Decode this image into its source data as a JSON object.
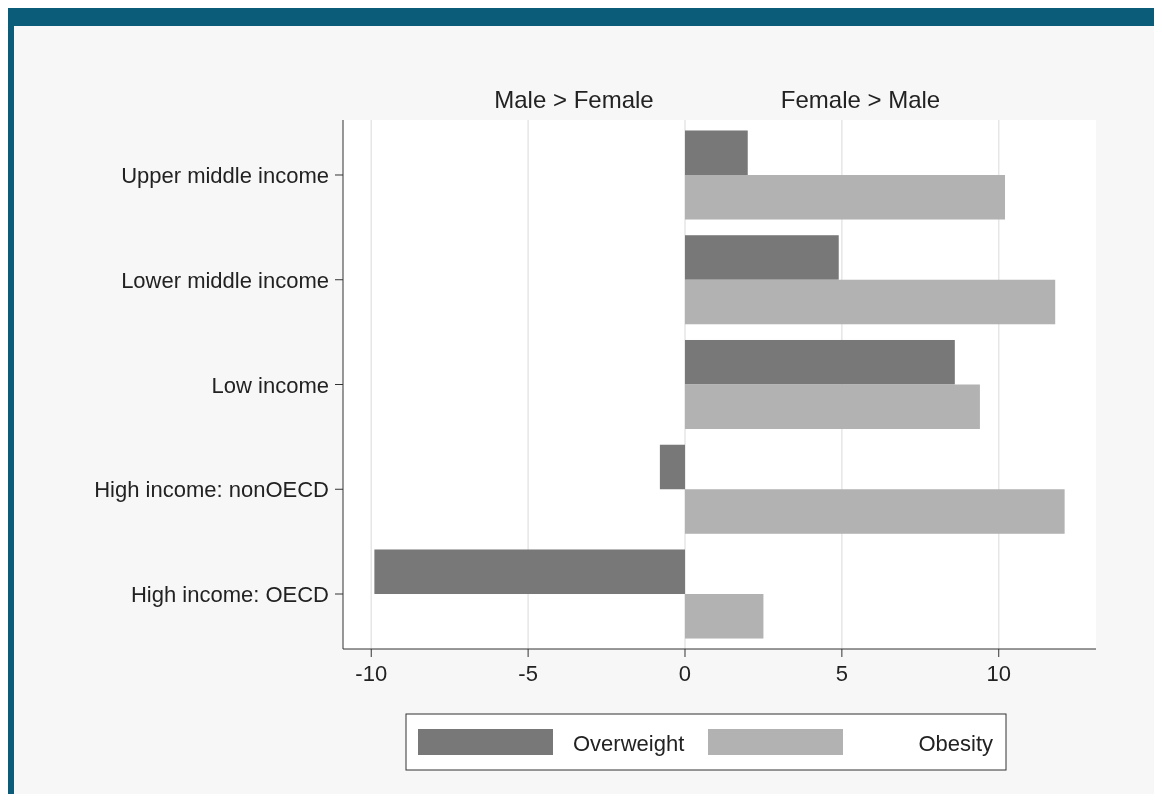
{
  "chart_data": {
    "type": "bar",
    "orientation": "horizontal",
    "categories": [
      "Upper middle income",
      "Lower middle income",
      "Low income",
      "High income: nonOECD",
      "High income: OECD"
    ],
    "series": [
      {
        "name": "Overweight",
        "color": "#787878",
        "values": [
          2.0,
          4.9,
          8.6,
          -0.8,
          -9.9
        ]
      },
      {
        "name": "Obesity",
        "color": "#b2b2b2",
        "values": [
          10.2,
          11.8,
          9.4,
          12.1,
          2.5
        ]
      }
    ],
    "xlim": [
      -10.9,
      13.1
    ],
    "xticks": [
      -10,
      -5,
      0,
      5,
      10
    ],
    "grid": "x",
    "legend": "bottom",
    "annotations": [
      "Male > Female",
      "Female > Male"
    ]
  }
}
